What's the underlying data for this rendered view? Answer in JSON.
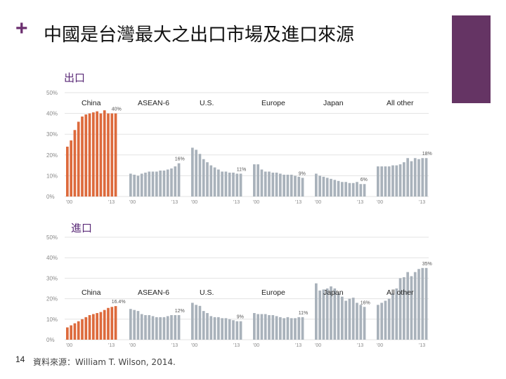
{
  "slide": {
    "bullet": "+",
    "title": "中國是台灣最大之出口市場及進口來源",
    "page_number": "14",
    "source": "資料來源：William T. Wilson, 2014.",
    "accent_color": "#653464"
  },
  "colors": {
    "china": "#dd6a3c",
    "other": "#a9b2bb",
    "grid": "#e3e3e3",
    "tick": "#888888"
  },
  "chart_data": [
    {
      "type": "bar",
      "label": "出口",
      "ylim": [
        0,
        50
      ],
      "yticks": [
        "0%",
        "10%",
        "20%",
        "30%",
        "40%",
        "50%"
      ],
      "groups": [
        {
          "name": "China",
          "start": "'00",
          "end": "'13",
          "end_label": "40%",
          "values": [
            24,
            27,
            32,
            36,
            38.5,
            39.5,
            40,
            40.5,
            41,
            40,
            41.5,
            40,
            40,
            40
          ]
        },
        {
          "name": "ASEAN-6",
          "start": "'00",
          "end": "'13",
          "end_label": "16%",
          "values": [
            11,
            10.5,
            10,
            11,
            11.5,
            12,
            12,
            12,
            12.5,
            12.5,
            13,
            13.5,
            14.5,
            16
          ]
        },
        {
          "name": "U.S.",
          "start": "'00",
          "end": "'13",
          "end_label": "11%",
          "values": [
            23.5,
            22.5,
            20.5,
            18,
            16.5,
            15,
            14,
            13,
            12,
            12,
            11.5,
            11.5,
            11,
            11
          ]
        },
        {
          "name": "Europe",
          "start": "'00",
          "end": "'13",
          "end_label": "9%",
          "values": [
            15.5,
            15.5,
            13,
            12,
            12,
            11.5,
            11.5,
            11,
            10.5,
            10.5,
            10.5,
            10,
            9.5,
            9
          ]
        },
        {
          "name": "Japan",
          "start": "'00",
          "end": "'13",
          "end_label": "6%",
          "values": [
            11,
            10,
            9.5,
            9,
            8.5,
            8,
            7.5,
            7,
            7,
            6.5,
            6.5,
            7,
            6,
            6
          ]
        },
        {
          "name": "All other",
          "start": "'00",
          "end": "'13",
          "end_label": "18%",
          "values": [
            14.5,
            14.5,
            14.5,
            14.5,
            15,
            15,
            15.5,
            16.5,
            18.5,
            17,
            18.5,
            18,
            18.5,
            18.5
          ]
        }
      ]
    },
    {
      "type": "bar",
      "label": "進口",
      "ylim": [
        0,
        50
      ],
      "yticks": [
        "0%",
        "10%",
        "20%",
        "30%",
        "40%",
        "50%"
      ],
      "groups": [
        {
          "name": "China",
          "start": "'00",
          "end": "'13",
          "end_label": "16.4%",
          "values": [
            6,
            7,
            8,
            9,
            10,
            11,
            12,
            12.5,
            13,
            13.5,
            14.5,
            15.5,
            16,
            16.4
          ]
        },
        {
          "name": "ASEAN-6",
          "start": "'00",
          "end": "'13",
          "end_label": "12%",
          "values": [
            15,
            14.5,
            14,
            12.5,
            12,
            12,
            11.5,
            11,
            11,
            11,
            11.5,
            12,
            12,
            12
          ]
        },
        {
          "name": "U.S.",
          "start": "'00",
          "end": "'13",
          "end_label": "9%",
          "values": [
            18,
            17,
            16.5,
            14,
            13,
            11.5,
            11,
            11,
            10.5,
            10.5,
            10,
            9.5,
            9,
            9
          ]
        },
        {
          "name": "Europe",
          "start": "'00",
          "end": "'13",
          "end_label": "11%",
          "values": [
            13,
            12.5,
            12.5,
            12.5,
            12,
            12,
            11.5,
            11,
            10.5,
            11,
            10.5,
            10.5,
            11,
            11
          ]
        },
        {
          "name": "Japan",
          "start": "'00",
          "end": "'13",
          "end_label": "16%",
          "values": [
            27.5,
            24,
            24.5,
            25,
            26,
            25,
            22.5,
            21,
            19,
            20,
            20.5,
            18,
            17,
            16
          ]
        },
        {
          "name": "All other",
          "start": "'00",
          "end": "'13",
          "end_label": "35%",
          "values": [
            17,
            18,
            19,
            20,
            22.5,
            25,
            30,
            30.5,
            33,
            31,
            33,
            34.5,
            35,
            35
          ]
        }
      ]
    }
  ]
}
